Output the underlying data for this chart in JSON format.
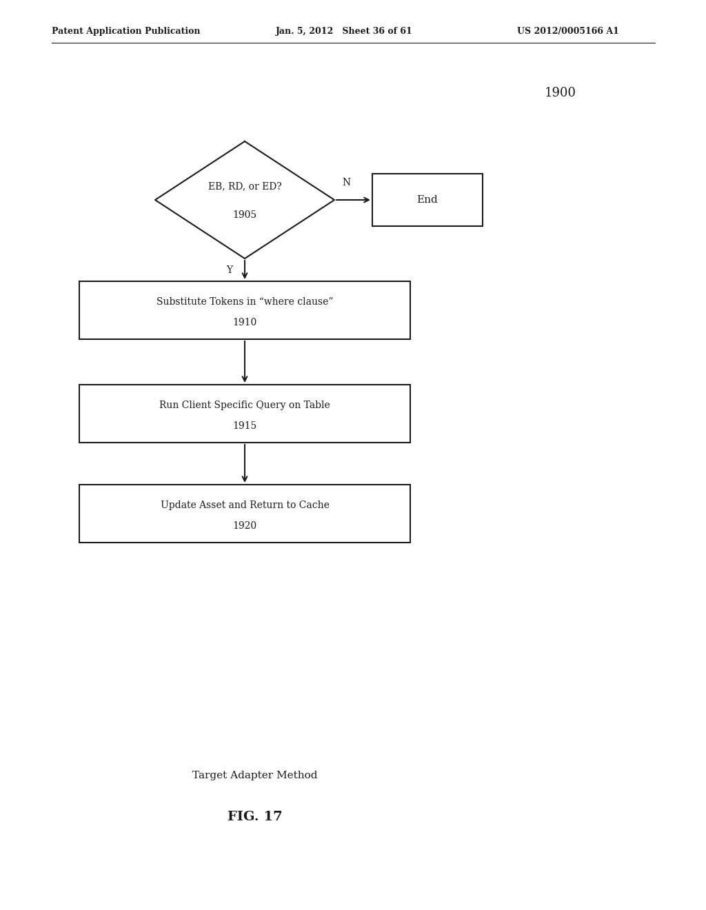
{
  "bg_color": "#ffffff",
  "header_left": "Patent Application Publication",
  "header_mid": "Jan. 5, 2012   Sheet 36 of 61",
  "header_right": "US 2012/0005166 A1",
  "diagram_label": "1900",
  "diamond_label1": "EB, RD, or ED?",
  "diamond_label2": "1905",
  "end_label": "End",
  "box1_label1": "Substitute Tokens in “where clause”",
  "box1_label2": "1910",
  "box2_label1": "Run Client Specific Query on Table",
  "box2_label2": "1915",
  "box3_label1": "Update Asset and Return to Cache",
  "box3_label2": "1920",
  "n_label": "N",
  "y_label": "Y",
  "caption1": "Target Adapter Method",
  "caption2": "FIG. 17",
  "text_color": "#1a1a1a",
  "box_edge_color": "#1a1a1a",
  "arrow_color": "#1a1a1a",
  "header_fontsize": 9,
  "body_fontsize": 10,
  "caption1_fontsize": 11,
  "caption2_fontsize": 14,
  "diagram_label_fontsize": 13
}
